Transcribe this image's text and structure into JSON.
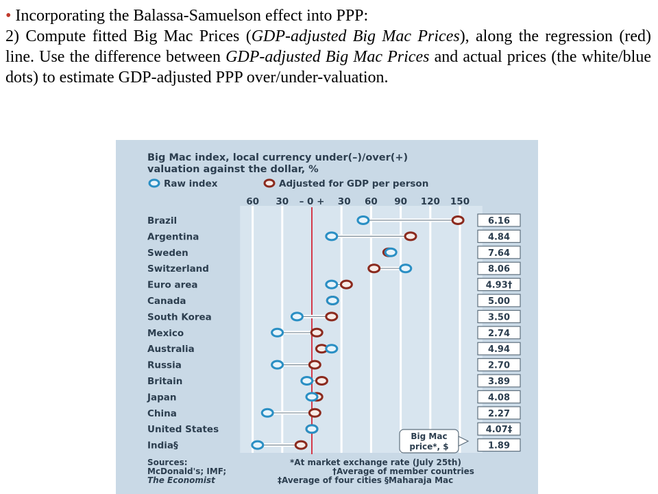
{
  "slide": {
    "heading": "Incorporating the Balassa-Samuelson effect into PPP:",
    "paragraph": [
      {
        "t": "2) Compute fitted Big Mac Prices (",
        "i": false
      },
      {
        "t": "GDP-adjusted Big Mac Prices",
        "i": true
      },
      {
        "t": "), along the regression (red) line. Use the difference between ",
        "i": false
      },
      {
        "t": "GDP-adjusted Big Mac Prices",
        "i": true
      },
      {
        "t": " and actual prices (the white/blue dots) to estimate GDP-adjusted PPP over/under-valuation.",
        "i": false
      }
    ]
  },
  "colors": {
    "background": "#c9d9e6",
    "raw": "#2a8fc4",
    "adjusted": "#8b2a1e",
    "zero_line": "#d4394a",
    "label": "#2c3e4f"
  },
  "chart_data": {
    "type": "dot",
    "title_lines": [
      "Big Mac index, local currency under(–)/over(+)",
      "valuation against the dollar, %"
    ],
    "legend": [
      "Raw index",
      "Adjusted for GDP per person"
    ],
    "legend_placement": "top",
    "tick_labels": [
      "60",
      "30",
      "– 0 +",
      "30",
      "60",
      "90",
      "120",
      "150"
    ],
    "xlim": [
      -70,
      170
    ],
    "grid": true,
    "countries": [
      "Brazil",
      "Argentina",
      "Sweden",
      "Switzerland",
      "Euro area",
      "Canada",
      "South Korea",
      "Mexico",
      "Australia",
      "Russia",
      "Britain",
      "Japan",
      "China",
      "United States",
      "India§"
    ],
    "series": [
      {
        "name": "Raw index",
        "values": [
          52,
          20,
          80,
          95,
          20,
          21,
          -15,
          -35,
          20,
          -35,
          -5,
          0,
          -45,
          0,
          -55
        ]
      },
      {
        "name": "Adjusted for GDP per person",
        "values": [
          148,
          100,
          78,
          63,
          35,
          21,
          20,
          5,
          10,
          3,
          10,
          5,
          3,
          0,
          -11
        ]
      }
    ],
    "price_values": [
      "6.16",
      "4.84",
      "7.64",
      "8.06",
      "4.93†",
      "5.00",
      "3.50",
      "2.74",
      "4.94",
      "2.70",
      "3.89",
      "4.08",
      "2.27",
      "4.07‡",
      "1.89"
    ],
    "price_callout": [
      "Big Mac",
      "price*, $"
    ],
    "sources": [
      "Sources:",
      "McDonald's; IMF;",
      "The Economist"
    ],
    "notes": [
      "*At market exchange rate (July 25th)",
      "†Average of member countries",
      "‡Average of four cities   §Maharaja Mac"
    ]
  }
}
